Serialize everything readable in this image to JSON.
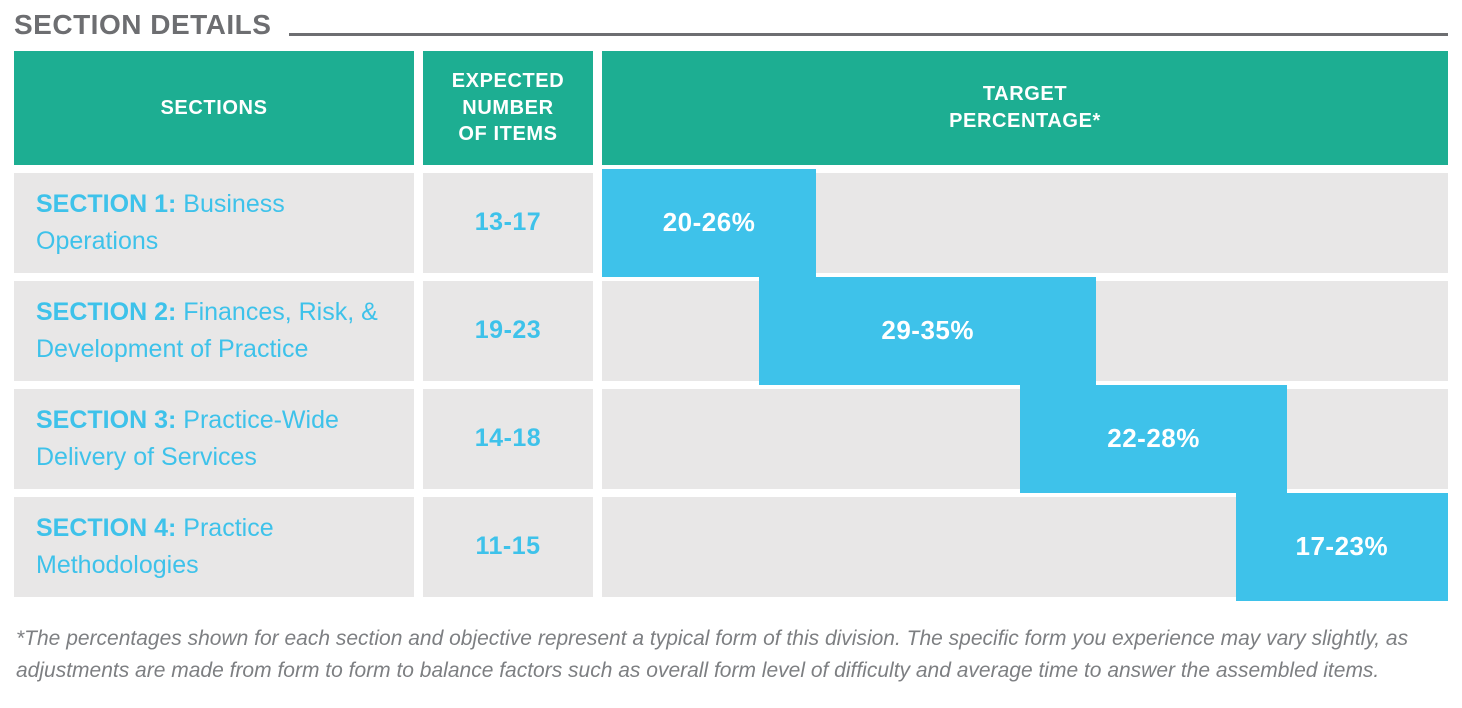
{
  "title": "SECTION DETAILS",
  "colors": {
    "header_teal": "#1dae92",
    "bar_cyan": "#3ec2ea",
    "row_gray": "#e8e7e7",
    "title_gray": "#6d6e71",
    "footnote_gray": "#7d7f82"
  },
  "table": {
    "col_headers": {
      "sections": "SECTIONS",
      "expected_items": "EXPECTED\nNUMBER\nOF ITEMS",
      "target_percentage": "TARGET\nPERCENTAGE*"
    },
    "rows": [
      {
        "section_label": "SECTION 1:",
        "section_name": "Business Operations",
        "expected_items": "13-17",
        "target_label": "20-26%",
        "bar": {
          "start_pct": 0,
          "end_pct": 25.3
        }
      },
      {
        "section_label": "SECTION 2:",
        "section_name": "Finances, Risk, & Development of Practice",
        "expected_items": "19-23",
        "target_label": "29-35%",
        "bar": {
          "start_pct": 18.6,
          "end_pct": 58.4
        }
      },
      {
        "section_label": "SECTION 3:",
        "section_name": "Practice-Wide Delivery of Services",
        "expected_items": "14-18",
        "target_label": "22-28%",
        "bar": {
          "start_pct": 49.4,
          "end_pct": 81.0
        }
      },
      {
        "section_label": "SECTION 4:",
        "section_name": "Practice Methodologies",
        "expected_items": "11-15",
        "target_label": "17-23%",
        "bar": {
          "start_pct": 74.9,
          "end_pct": 100
        }
      }
    ]
  },
  "footnote": "*The percentages shown for each section and objective represent a typical form of this division. The specific form you experience may vary slightly, as\nadjustments are made from form to form to balance factors such as overall form level of difficulty and average time to answer the assembled items.",
  "chart_data": {
    "type": "bar",
    "orientation": "horizontal-range",
    "title": "SECTION DETAILS",
    "categories": [
      "Section 1: Business Operations",
      "Section 2: Finances, Risk, & Development of Practice",
      "Section 3: Practice-Wide Delivery of Services",
      "Section 4: Practice Methodologies"
    ],
    "series": [
      {
        "name": "Expected number of items",
        "values": [
          [
            13,
            17
          ],
          [
            19,
            23
          ],
          [
            14,
            18
          ],
          [
            11,
            15
          ]
        ]
      },
      {
        "name": "Target percentage",
        "values": [
          [
            20,
            26
          ],
          [
            29,
            35
          ],
          [
            22,
            28
          ],
          [
            17,
            23
          ]
        ]
      }
    ],
    "bar_labels": [
      "20-26%",
      "29-35%",
      "22-28%",
      "17-23%"
    ],
    "bar_positions_pct_of_column": [
      [
        0,
        25.3
      ],
      [
        18.6,
        58.4
      ],
      [
        49.4,
        81.0
      ],
      [
        74.9,
        100
      ]
    ],
    "xlim": [
      0,
      100
    ],
    "grid": false,
    "legend": false
  }
}
